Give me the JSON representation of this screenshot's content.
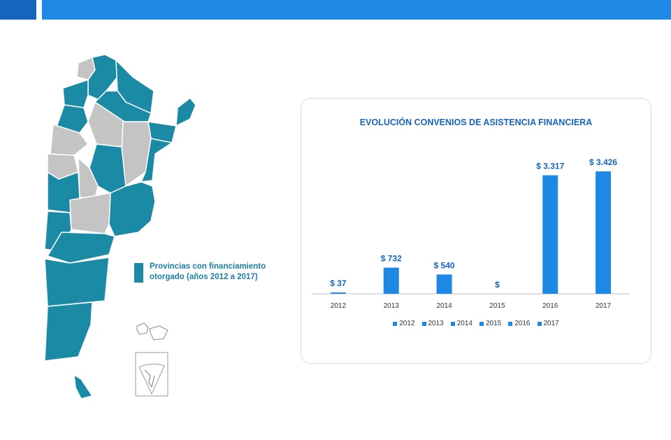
{
  "legend_text": "Provincias con financiamiento otorgado (años 2012 a 2017)",
  "colors": {
    "teal": "#1a8aa5",
    "gray": "#c4c4c4",
    "bar": "#1e88e5",
    "accent_dark": "#1565c0"
  },
  "chart_data": {
    "type": "bar",
    "title": "EVOLUCIÓN CONVENIOS DE ASISTENCIA FINANCIERA",
    "categories": [
      "2012",
      "2013",
      "2014",
      "2015",
      "2016",
      "2017"
    ],
    "values": [
      37,
      732,
      540,
      0,
      3317,
      3426
    ],
    "data_labels": [
      "$ 37",
      "$ 732",
      "$ 540",
      "$",
      "$ 3.317",
      "$ 3.426"
    ],
    "ylim": [
      0,
      3700
    ],
    "grid": false,
    "legend_position": "bottom",
    "legend": [
      "2012",
      "2013",
      "2014",
      "2015",
      "2016",
      "2017"
    ]
  }
}
